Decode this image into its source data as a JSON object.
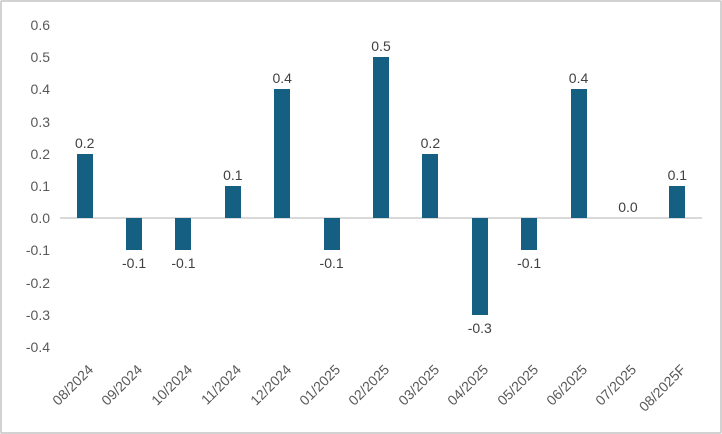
{
  "chart_data": {
    "type": "bar",
    "title": "",
    "xlabel": "",
    "ylabel": "",
    "categories": [
      "08/2024",
      "09/2024",
      "10/2024",
      "11/2024",
      "12/2024",
      "01/2025",
      "02/2025",
      "03/2025",
      "04/2025",
      "05/2025",
      "06/2025",
      "07/2025",
      "08/2025F"
    ],
    "values": [
      0.2,
      -0.1,
      -0.1,
      0.1,
      0.4,
      -0.1,
      0.5,
      0.2,
      -0.3,
      -0.1,
      0.4,
      0.0,
      0.1
    ],
    "data_labels": [
      "0.2",
      "-0.1",
      "-0.1",
      "0.1",
      "0.4",
      "-0.1",
      "0.5",
      "0.2",
      "-0.3",
      "-0.1",
      "0.4",
      "0.0",
      "0.1"
    ],
    "ylim": [
      -0.4,
      0.6
    ],
    "yticks": [
      "0.6",
      "0.5",
      "0.4",
      "0.3",
      "0.2",
      "0.1",
      "0.0",
      "-0.1",
      "-0.2",
      "-0.3",
      "-0.4"
    ],
    "ytick_values": [
      0.6,
      0.5,
      0.4,
      0.3,
      0.2,
      0.1,
      0.0,
      -0.1,
      -0.2,
      -0.3,
      -0.4
    ],
    "grid": "off",
    "legend": "none",
    "colors": {
      "bar": "#156082",
      "axis_label": "#595959",
      "data_label": "#404040",
      "zero_line": "#d9d9d9",
      "background": "#ffffff",
      "frame_border": "#d2d2d2"
    }
  }
}
